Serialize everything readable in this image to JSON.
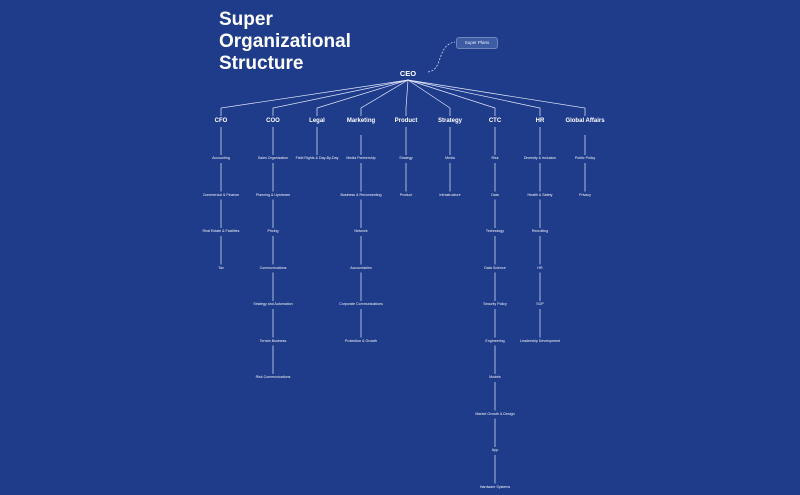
{
  "title": {
    "line1": "Super",
    "line2": "Organizational",
    "line3": "Structure"
  },
  "tag": "Super Plans",
  "root": "CEO",
  "departments": [
    {
      "label": "CFO",
      "children": [
        "Accounting",
        "Commercial & Finance",
        "Real Estate & Facilities",
        "Tax"
      ]
    },
    {
      "label": "COO",
      "children": [
        "Sales Organization",
        "Planning & Upstream",
        "Pricing",
        "Communications",
        "Strategy and Automation",
        "Terrain Business",
        "Risk Communications"
      ]
    },
    {
      "label": "Legal",
      "children": [
        "Field Rights & Day-By-Day"
      ]
    },
    {
      "label": "Marketing",
      "children": [
        "Media Partnership",
        "Business & Reconnecting",
        "Network",
        "Accountables",
        "Corporate Communications",
        "Protection & Growth"
      ]
    },
    {
      "label": "Product",
      "children": [
        "Strategy",
        "Product"
      ]
    },
    {
      "label": "Strategy",
      "children": [
        "Media",
        "Infrastructure"
      ]
    },
    {
      "label": "CTC",
      "children": [
        "Risk",
        "Data",
        "Technology",
        "Data Science",
        "Security Policy",
        "Engineering",
        "Models",
        "Market Growth & Design",
        "App",
        "Hardware Systems"
      ]
    },
    {
      "label": "HR",
      "children": [
        "Diversity & Inclusion",
        "Health & Safety",
        "Recruiting",
        "HR",
        "SOP",
        "Leadership Development"
      ]
    },
    {
      "label": "Global Affairs",
      "children": [
        "Public Policy",
        "Privacy"
      ]
    }
  ]
}
